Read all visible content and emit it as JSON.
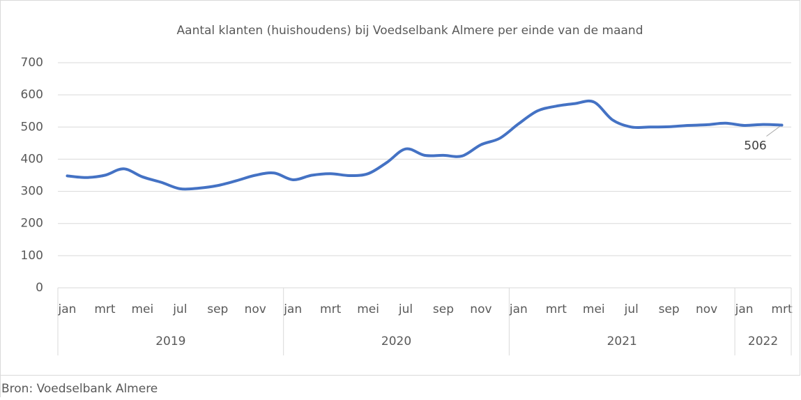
{
  "chart_data": {
    "type": "line",
    "title": "Aantal klanten (huishoudens) bij Voedselbank Almere per einde van de maand",
    "source": "Bron: Voedselbank Almere",
    "groups": [
      {
        "label": "2019",
        "categories": [
          "jan",
          null,
          "mrt",
          null,
          "mei",
          null,
          "jul",
          null,
          "sep",
          null,
          "nov",
          null
        ]
      },
      {
        "label": "2020",
        "categories": [
          "jan",
          null,
          "mrt",
          null,
          "mei",
          null,
          "jul",
          null,
          "sep",
          null,
          "nov",
          null
        ]
      },
      {
        "label": "2021",
        "categories": [
          "jan",
          null,
          "mrt",
          null,
          "mei",
          null,
          "jul",
          null,
          "sep",
          null,
          "nov",
          null
        ]
      },
      {
        "label": "2022",
        "categories": [
          "jan",
          null,
          "mrt"
        ]
      }
    ],
    "series": [
      {
        "name": "Aantal klanten",
        "color": "#4472c4",
        "values": [
          348,
          343,
          350,
          370,
          345,
          328,
          308,
          310,
          318,
          333,
          350,
          357,
          336,
          350,
          355,
          349,
          355,
          390,
          432,
          412,
          412,
          410,
          445,
          465,
          510,
          550,
          565,
          573,
          578,
          522,
          500,
          500,
          501,
          505,
          507,
          512,
          505,
          508,
          506
        ]
      }
    ],
    "ylim": [
      0,
      700
    ],
    "yticks": [
      0,
      100,
      200,
      300,
      400,
      500,
      600,
      700
    ],
    "grid": true
  }
}
